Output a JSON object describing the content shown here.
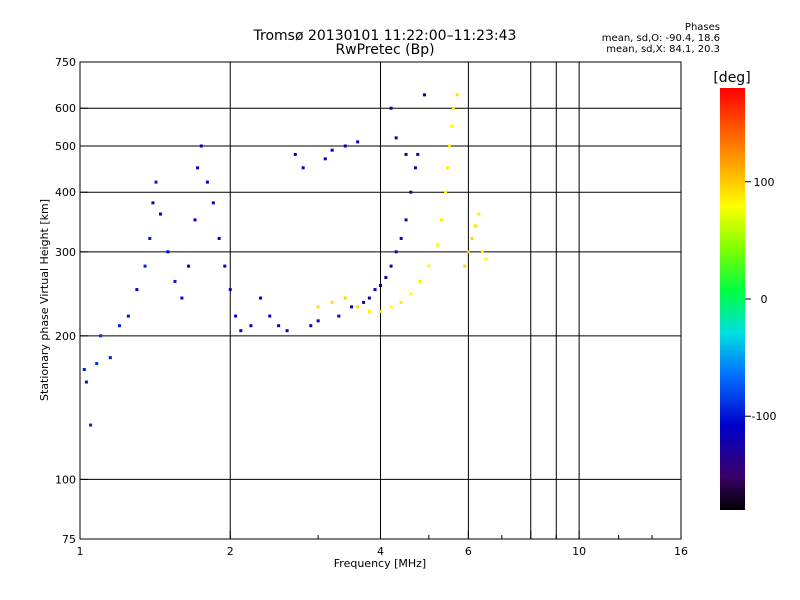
{
  "title_line1": "Tromsø 20130101 11:22:00–11:23:43",
  "title_line2": "RwPretec (Bp)",
  "stats": {
    "heading": "Phases",
    "o_line": "mean, sd,O: -90.4, 18.6",
    "x_line": "mean, sd,X:  84.1, 20.3"
  },
  "colorbar": {
    "label": "[deg]",
    "ticks": [
      {
        "value": 100,
        "label": "100"
      },
      {
        "value": 0,
        "label": "0"
      },
      {
        "value": -100,
        "label": "-100"
      }
    ],
    "range": [
      -180,
      180
    ]
  },
  "chart_data": {
    "type": "scatter",
    "xlabel": "Frequency [MHz]",
    "ylabel": "Stationary phase Virtual Height [km]",
    "x_scale": "log",
    "y_scale": "log",
    "xlim": [
      1,
      16
    ],
    "ylim": [
      75,
      750
    ],
    "x_ticks": [
      {
        "value": 1,
        "label": "1"
      },
      {
        "value": 2,
        "label": "2"
      },
      {
        "value": 4,
        "label": "4"
      },
      {
        "value": 6,
        "label": "6"
      },
      {
        "value": 8,
        "label": ""
      },
      {
        "value": 10,
        "label": "10"
      },
      {
        "value": 16,
        "label": "16"
      }
    ],
    "x_minor_ticks": [
      3,
      5,
      7,
      9,
      12,
      14
    ],
    "x_grid": [
      2,
      4,
      6,
      8,
      9,
      10
    ],
    "y_ticks": [
      {
        "value": 75,
        "label": "75"
      },
      {
        "value": 100,
        "label": "100"
      },
      {
        "value": 200,
        "label": "200"
      },
      {
        "value": 300,
        "label": "300"
      },
      {
        "value": 400,
        "label": "400"
      },
      {
        "value": 500,
        "label": "500"
      },
      {
        "value": 600,
        "label": "600"
      },
      {
        "value": 750,
        "label": "750"
      }
    ],
    "y_grid": [
      100,
      200,
      300,
      400,
      500,
      600
    ],
    "grid": true,
    "series": [
      {
        "mode": "O",
        "points": [
          [
            1.02,
            170,
            -95
          ],
          [
            1.03,
            160,
            -100
          ],
          [
            1.05,
            130,
            -95
          ],
          [
            1.08,
            175,
            -90
          ],
          [
            1.1,
            200,
            -90
          ],
          [
            1.15,
            180,
            -100
          ],
          [
            1.2,
            210,
            -95
          ],
          [
            1.25,
            220,
            -100
          ],
          [
            1.3,
            250,
            -110
          ],
          [
            1.35,
            280,
            -95
          ],
          [
            1.38,
            320,
            -100
          ],
          [
            1.4,
            380,
            -110
          ],
          [
            1.42,
            420,
            -100
          ],
          [
            1.45,
            360,
            -110
          ],
          [
            1.5,
            300,
            -105
          ],
          [
            1.55,
            260,
            -100
          ],
          [
            1.6,
            240,
            -105
          ],
          [
            1.65,
            280,
            -110
          ],
          [
            1.7,
            350,
            -110
          ],
          [
            1.72,
            450,
            -120
          ],
          [
            1.75,
            500,
            -115
          ],
          [
            1.8,
            420,
            -110
          ],
          [
            1.85,
            380,
            -110
          ],
          [
            1.9,
            320,
            -115
          ],
          [
            1.95,
            280,
            -110
          ],
          [
            2.0,
            250,
            -110
          ],
          [
            2.05,
            220,
            -115
          ],
          [
            2.1,
            205,
            -110
          ],
          [
            2.2,
            210,
            -115
          ],
          [
            2.3,
            240,
            -110
          ],
          [
            2.4,
            220,
            -110
          ],
          [
            2.5,
            210,
            -115
          ],
          [
            2.6,
            205,
            -110
          ],
          [
            2.7,
            480,
            -115
          ],
          [
            2.8,
            450,
            -115
          ],
          [
            2.9,
            210,
            -120
          ],
          [
            3.0,
            215,
            -120
          ],
          [
            3.1,
            470,
            -110
          ],
          [
            3.2,
            490,
            -110
          ],
          [
            3.3,
            220,
            -125
          ],
          [
            3.4,
            500,
            -120
          ],
          [
            3.5,
            230,
            -125
          ],
          [
            3.6,
            510,
            -120
          ],
          [
            3.7,
            235,
            -125
          ],
          [
            3.8,
            240,
            -120
          ],
          [
            3.9,
            250,
            -125
          ],
          [
            4.0,
            255,
            -120
          ],
          [
            4.1,
            265,
            -125
          ],
          [
            4.2,
            280,
            -125
          ],
          [
            4.3,
            300,
            -125
          ],
          [
            4.4,
            320,
            -125
          ],
          [
            4.5,
            350,
            -130
          ],
          [
            4.6,
            400,
            -130
          ],
          [
            4.7,
            450,
            -130
          ],
          [
            4.75,
            480,
            -125
          ],
          [
            4.5,
            480,
            -120
          ],
          [
            4.3,
            520,
            -120
          ],
          [
            4.2,
            600,
            -120
          ],
          [
            4.9,
            640,
            -110
          ]
        ]
      },
      {
        "mode": "X",
        "points": [
          [
            3.0,
            230,
            90
          ],
          [
            3.2,
            235,
            90
          ],
          [
            3.4,
            240,
            95
          ],
          [
            3.6,
            230,
            90
          ],
          [
            3.8,
            225,
            85
          ],
          [
            4.0,
            225,
            85
          ],
          [
            4.2,
            230,
            80
          ],
          [
            4.4,
            235,
            85
          ],
          [
            4.6,
            245,
            80
          ],
          [
            4.8,
            260,
            85
          ],
          [
            5.0,
            280,
            80
          ],
          [
            5.2,
            310,
            80
          ],
          [
            5.3,
            350,
            85
          ],
          [
            5.4,
            400,
            80
          ],
          [
            5.45,
            450,
            85
          ],
          [
            5.5,
            500,
            85
          ],
          [
            5.55,
            550,
            80
          ],
          [
            5.6,
            600,
            85
          ],
          [
            5.7,
            640,
            90
          ],
          [
            5.9,
            280,
            95
          ],
          [
            6.0,
            300,
            100
          ],
          [
            6.1,
            320,
            95
          ],
          [
            6.2,
            340,
            90
          ],
          [
            6.3,
            360,
            85
          ],
          [
            6.4,
            300,
            85
          ],
          [
            6.5,
            290,
            80
          ]
        ]
      }
    ]
  }
}
